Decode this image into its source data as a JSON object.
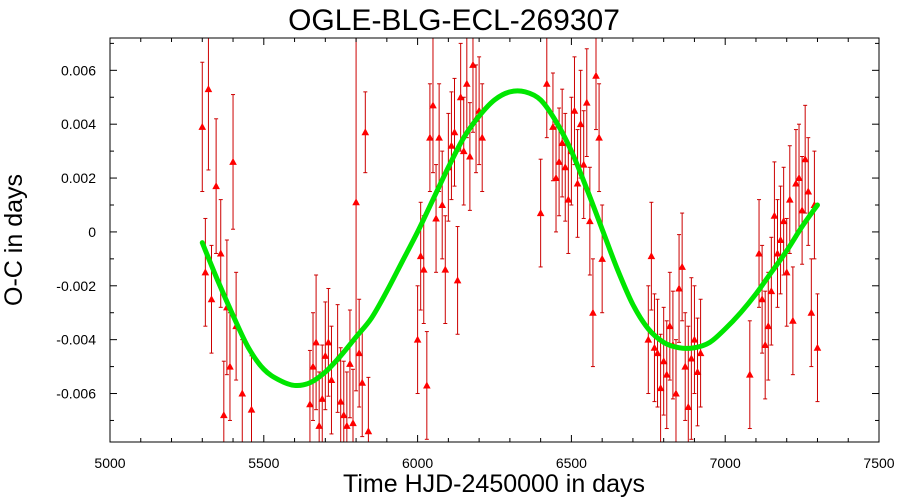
{
  "chart_data": {
    "type": "scatter",
    "title": "OGLE-BLG-ECL-269307",
    "xlabel": "Time HJD-2450000 in days",
    "ylabel": "O-C in days",
    "xlim": [
      5000,
      7500
    ],
    "ylim": [
      -0.0078,
      0.0072
    ],
    "xticks": [
      5000,
      5500,
      6000,
      6500,
      7000,
      7500
    ],
    "yticks": [
      -0.006,
      -0.004,
      -0.002,
      0,
      0.002,
      0.004,
      0.006
    ],
    "xtick_labels": [
      "5000",
      "5500",
      "6000",
      "6500",
      "7000",
      "7500"
    ],
    "ytick_labels": [
      "-0.006",
      "-0.004",
      "-0.002",
      "0",
      "0.002",
      "0.004",
      "0.006"
    ],
    "grid": false,
    "colors": {
      "points": "#ff0000",
      "errorbars": "#cc0000",
      "fit": "#00e600"
    },
    "series": [
      {
        "kind": "points_with_errorbars",
        "points": [
          {
            "x": 5300,
            "y": 0.0039,
            "err": 0.0024
          },
          {
            "x": 5310,
            "y": -0.0015,
            "err": 0.002
          },
          {
            "x": 5320,
            "y": 0.0053,
            "err": 0.003
          },
          {
            "x": 5330,
            "y": -0.0025,
            "err": 0.002
          },
          {
            "x": 5345,
            "y": 0.0017,
            "err": 0.0025
          },
          {
            "x": 5360,
            "y": -0.0008,
            "err": 0.002
          },
          {
            "x": 5370,
            "y": -0.0068,
            "err": 0.002
          },
          {
            "x": 5380,
            "y": -0.0028,
            "err": 0.0025
          },
          {
            "x": 5390,
            "y": -0.005,
            "err": 0.002
          },
          {
            "x": 5400,
            "y": 0.0026,
            "err": 0.0025
          },
          {
            "x": 5410,
            "y": -0.0035,
            "err": 0.002
          },
          {
            "x": 5430,
            "y": -0.006,
            "err": 0.002
          },
          {
            "x": 5460,
            "y": -0.0066,
            "err": 0.002
          },
          {
            "x": 5650,
            "y": -0.0064,
            "err": 0.002
          },
          {
            "x": 5660,
            "y": -0.005,
            "err": 0.002
          },
          {
            "x": 5670,
            "y": -0.0041,
            "err": 0.0025
          },
          {
            "x": 5680,
            "y": -0.0072,
            "err": 0.002
          },
          {
            "x": 5690,
            "y": -0.0062,
            "err": 0.002
          },
          {
            "x": 5700,
            "y": -0.0046,
            "err": 0.002
          },
          {
            "x": 5710,
            "y": -0.0041,
            "err": 0.002
          },
          {
            "x": 5720,
            "y": -0.0055,
            "err": 0.002
          },
          {
            "x": 5740,
            "y": -0.0047,
            "err": 0.002
          },
          {
            "x": 5750,
            "y": -0.0063,
            "err": 0.002
          },
          {
            "x": 5760,
            "y": -0.0068,
            "err": 0.002
          },
          {
            "x": 5770,
            "y": -0.0072,
            "err": 0.002
          },
          {
            "x": 5780,
            "y": -0.0049,
            "err": 0.002
          },
          {
            "x": 5790,
            "y": -0.0071,
            "err": 0.002
          },
          {
            "x": 5800,
            "y": 0.0011,
            "err": 0.007
          },
          {
            "x": 5810,
            "y": -0.0045,
            "err": 0.002
          },
          {
            "x": 5820,
            "y": -0.0056,
            "err": 0.002
          },
          {
            "x": 5830,
            "y": 0.0037,
            "err": 0.0015
          },
          {
            "x": 5840,
            "y": -0.0074,
            "err": 0.002
          },
          {
            "x": 6000,
            "y": -0.004,
            "err": 0.002
          },
          {
            "x": 6010,
            "y": -0.0009,
            "err": 0.002
          },
          {
            "x": 6020,
            "y": -0.0014,
            "err": 0.002
          },
          {
            "x": 6030,
            "y": -0.0057,
            "err": 0.002
          },
          {
            "x": 6040,
            "y": 0.0035,
            "err": 0.002
          },
          {
            "x": 6050,
            "y": 0.0047,
            "err": 0.0025
          },
          {
            "x": 6060,
            "y": 0.0005,
            "err": 0.002
          },
          {
            "x": 6070,
            "y": 0.0035,
            "err": 0.002
          },
          {
            "x": 6080,
            "y": 0.001,
            "err": 0.002
          },
          {
            "x": 6090,
            "y": -0.0014,
            "err": 0.002
          },
          {
            "x": 6100,
            "y": 0.0024,
            "err": 0.002
          },
          {
            "x": 6110,
            "y": 0.0032,
            "err": 0.002
          },
          {
            "x": 6120,
            "y": 0.0037,
            "err": 0.002
          },
          {
            "x": 6130,
            "y": -0.0018,
            "err": 0.002
          },
          {
            "x": 6140,
            "y": 0.005,
            "err": 0.002
          },
          {
            "x": 6150,
            "y": 0.003,
            "err": 0.002
          },
          {
            "x": 6160,
            "y": 0.0055,
            "err": 0.002
          },
          {
            "x": 6170,
            "y": 0.0028,
            "err": 0.002
          },
          {
            "x": 6180,
            "y": 0.0062,
            "err": 0.0025
          },
          {
            "x": 6190,
            "y": 0.0042,
            "err": 0.002
          },
          {
            "x": 6200,
            "y": 0.0045,
            "err": 0.002
          },
          {
            "x": 6210,
            "y": 0.0035,
            "err": 0.002
          },
          {
            "x": 6400,
            "y": 0.0007,
            "err": 0.002
          },
          {
            "x": 6420,
            "y": 0.0055,
            "err": 0.002
          },
          {
            "x": 6440,
            "y": 0.0039,
            "err": 0.002
          },
          {
            "x": 6450,
            "y": 0.002,
            "err": 0.002
          },
          {
            "x": 6460,
            "y": 0.0026,
            "err": 0.002
          },
          {
            "x": 6470,
            "y": 0.0033,
            "err": 0.002
          },
          {
            "x": 6480,
            "y": 0.0024,
            "err": 0.002
          },
          {
            "x": 6490,
            "y": 0.0012,
            "err": 0.002
          },
          {
            "x": 6500,
            "y": 0.003,
            "err": 0.002
          },
          {
            "x": 6510,
            "y": 0.0045,
            "err": 0.002
          },
          {
            "x": 6520,
            "y": 0.0018,
            "err": 0.002
          },
          {
            "x": 6530,
            "y": 0.004,
            "err": 0.002
          },
          {
            "x": 6540,
            "y": 0.0025,
            "err": 0.002
          },
          {
            "x": 6550,
            "y": 0.0048,
            "err": 0.002
          },
          {
            "x": 6560,
            "y": 0.0004,
            "err": 0.002
          },
          {
            "x": 6570,
            "y": -0.003,
            "err": 0.002
          },
          {
            "x": 6580,
            "y": 0.0058,
            "err": 0.002
          },
          {
            "x": 6590,
            "y": 0.0035,
            "err": 0.002
          },
          {
            "x": 6600,
            "y": -0.001,
            "err": 0.002
          },
          {
            "x": 6750,
            "y": -0.004,
            "err": 0.002
          },
          {
            "x": 6760,
            "y": -0.0009,
            "err": 0.002
          },
          {
            "x": 6770,
            "y": -0.0043,
            "err": 0.002
          },
          {
            "x": 6780,
            "y": -0.0045,
            "err": 0.002
          },
          {
            "x": 6790,
            "y": -0.0058,
            "err": 0.002
          },
          {
            "x": 6800,
            "y": -0.0048,
            "err": 0.002
          },
          {
            "x": 6810,
            "y": -0.0053,
            "err": 0.002
          },
          {
            "x": 6820,
            "y": -0.0035,
            "err": 0.002
          },
          {
            "x": 6830,
            "y": -0.0042,
            "err": 0.002
          },
          {
            "x": 6840,
            "y": -0.006,
            "err": 0.002
          },
          {
            "x": 6850,
            "y": -0.0021,
            "err": 0.002
          },
          {
            "x": 6860,
            "y": -0.0013,
            "err": 0.002
          },
          {
            "x": 6870,
            "y": -0.005,
            "err": 0.002
          },
          {
            "x": 6880,
            "y": -0.0065,
            "err": 0.003
          },
          {
            "x": 6890,
            "y": -0.0047,
            "err": 0.003
          },
          {
            "x": 6900,
            "y": -0.004,
            "err": 0.002
          },
          {
            "x": 6910,
            "y": -0.0052,
            "err": 0.002
          },
          {
            "x": 6920,
            "y": -0.0045,
            "err": 0.002
          },
          {
            "x": 7080,
            "y": -0.0053,
            "err": 0.002
          },
          {
            "x": 7110,
            "y": -0.0008,
            "err": 0.002
          },
          {
            "x": 7120,
            "y": -0.0025,
            "err": 0.002
          },
          {
            "x": 7130,
            "y": -0.0042,
            "err": 0.002
          },
          {
            "x": 7140,
            "y": -0.0035,
            "err": 0.002
          },
          {
            "x": 7150,
            "y": -0.0022,
            "err": 0.002
          },
          {
            "x": 7160,
            "y": 0.0006,
            "err": 0.002
          },
          {
            "x": 7170,
            "y": -0.0008,
            "err": 0.002
          },
          {
            "x": 7180,
            "y": -0.0003,
            "err": 0.002
          },
          {
            "x": 7190,
            "y": 0.0004,
            "err": 0.002
          },
          {
            "x": 7200,
            "y": -0.0015,
            "err": 0.002
          },
          {
            "x": 7210,
            "y": 0.0012,
            "err": 0.002
          },
          {
            "x": 7220,
            "y": -0.0033,
            "err": 0.002
          },
          {
            "x": 7230,
            "y": 0.0018,
            "err": 0.002
          },
          {
            "x": 7240,
            "y": 0.002,
            "err": 0.002
          },
          {
            "x": 7250,
            "y": 0.0008,
            "err": 0.002
          },
          {
            "x": 7260,
            "y": 0.0027,
            "err": 0.002
          },
          {
            "x": 7270,
            "y": 0.0015,
            "err": 0.002
          },
          {
            "x": 7280,
            "y": -0.003,
            "err": 0.002
          },
          {
            "x": 7290,
            "y": 0.001,
            "err": 0.002
          },
          {
            "x": 7300,
            "y": -0.0043,
            "err": 0.002
          }
        ]
      },
      {
        "kind": "fit_curve",
        "x": [
          5300,
          5350,
          5400,
          5450,
          5500,
          5550,
          5600,
          5650,
          5700,
          5750,
          5800,
          5850,
          5900,
          5950,
          6000,
          6050,
          6100,
          6150,
          6200,
          6250,
          6300,
          6350,
          6400,
          6450,
          6500,
          6550,
          6600,
          6650,
          6700,
          6750,
          6800,
          6850,
          6900,
          6950,
          7000,
          7050,
          7100,
          7150,
          7200,
          7250,
          7300
        ],
        "y": [
          -0.0004,
          -0.0018,
          -0.0031,
          -0.0043,
          -0.0051,
          -0.0055,
          -0.0057,
          -0.0056,
          -0.0052,
          -0.0046,
          -0.0039,
          -0.0032,
          -0.0022,
          -0.0011,
          0.0,
          0.0012,
          0.0024,
          0.0035,
          0.0043,
          0.0049,
          0.0052,
          0.0052,
          0.0049,
          0.0041,
          0.003,
          0.0016,
          0.0001,
          -0.0014,
          -0.0027,
          -0.0036,
          -0.0041,
          -0.0043,
          -0.0043,
          -0.0041,
          -0.0036,
          -0.003,
          -0.0023,
          -0.0015,
          -0.0007,
          0.0002,
          0.001
        ]
      }
    ]
  }
}
